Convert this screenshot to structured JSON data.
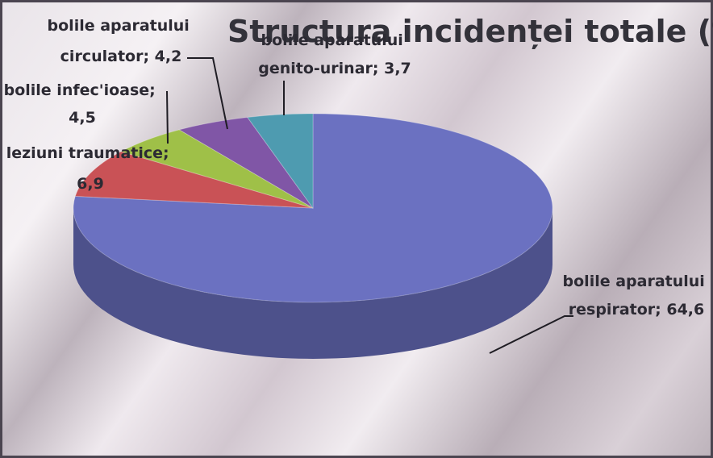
{
  "chart_data": {
    "type": "pie",
    "title": "Structura incidenței totale (%)",
    "slices": [
      {
        "label": "bolile aparatului respirator",
        "value": 64.6,
        "value_text": "64,6",
        "color": "#6b71c1"
      },
      {
        "label": "leziuni traumatice",
        "value": 6.9,
        "value_text": "6,9",
        "color": "#c95256"
      },
      {
        "label": "bolile infec'ioase",
        "value": 4.5,
        "value_text": "4,5",
        "color": "#9fc048"
      },
      {
        "label": "bolile aparatului circulator",
        "value": 4.2,
        "value_text": "4,2",
        "color": "#8056a6"
      },
      {
        "label": "bolile aparatului genito-urinar",
        "value": 3.7,
        "value_text": "3,7",
        "color": "#4e9bb0"
      }
    ],
    "legend": "none",
    "style": "3d-pie"
  },
  "labels": {
    "respirator_line1": "bolile aparatului",
    "respirator_line2": "respirator; 64,6",
    "traumatice_line1": "leziuni traumatice;",
    "traumatice_line2": "6,9",
    "infectioase_line1": "bolile infec'ioase;",
    "infectioase_line2": "4,5",
    "circulator_line1": "bolile aparatului",
    "circulator_line2": "circulator; 4,2",
    "genito_line1": "bolile aparatului",
    "genito_line2": "genito-urinar; 3,7"
  }
}
